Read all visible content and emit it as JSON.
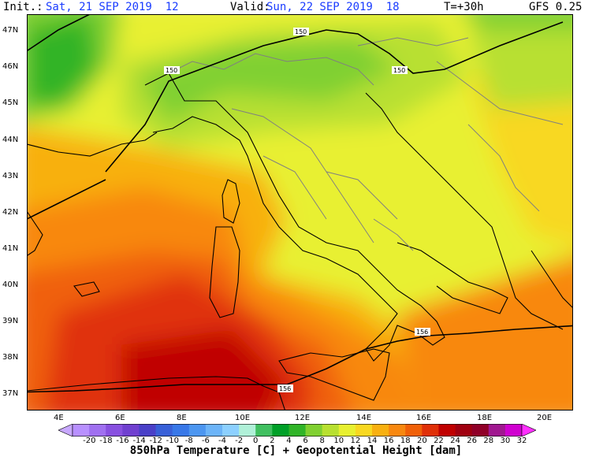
{
  "header": {
    "init_label": "Init.:",
    "init_value": "Sat, 21 SEP 2019  12",
    "valid_label": "Valid:",
    "valid_value": "Sun, 22 SEP 2019  18",
    "lead": "T=+30h",
    "model": "GFS 0.25"
  },
  "map": {
    "lat_labels": [
      "47N",
      "46N",
      "45N",
      "44N",
      "43N",
      "42N",
      "41N",
      "40N",
      "39N",
      "38N",
      "37N"
    ],
    "lon_labels": [
      "4E",
      "6E",
      "8E",
      "10E",
      "12E",
      "14E",
      "16E",
      "18E",
      "20E"
    ],
    "height_contour_labels": [
      "150",
      "150",
      "150",
      "156",
      "156"
    ],
    "colors": {
      "coast": "#000000",
      "borders": "#808080",
      "contour": "#000000"
    }
  },
  "colorbar": {
    "ticks": [
      "-20",
      "-18",
      "-16",
      "-14",
      "-12",
      "-10",
      "-8",
      "-6",
      "-4",
      "-2",
      "0",
      "2",
      "4",
      "6",
      "8",
      "10",
      "12",
      "14",
      "16",
      "18",
      "20",
      "22",
      "24",
      "26",
      "28",
      "30",
      "32"
    ],
    "colors": [
      "#c8a8ff",
      "#b890ff",
      "#a070f0",
      "#8850e0",
      "#7040d0",
      "#4a40c8",
      "#3860d8",
      "#3878e8",
      "#4c96f0",
      "#6cb4f8",
      "#8cd0ff",
      "#b0f0d8",
      "#40c060",
      "#00a028",
      "#30b428",
      "#80d030",
      "#b8e030",
      "#e8f030",
      "#f8d820",
      "#f8b010",
      "#f88810",
      "#f06008",
      "#e03008",
      "#c00000",
      "#a00010",
      "#900028",
      "#a01890",
      "#d000d0",
      "#ff30ff"
    ],
    "caption": "850hPa Temperature [C] + Geopotential Height [dam]"
  }
}
